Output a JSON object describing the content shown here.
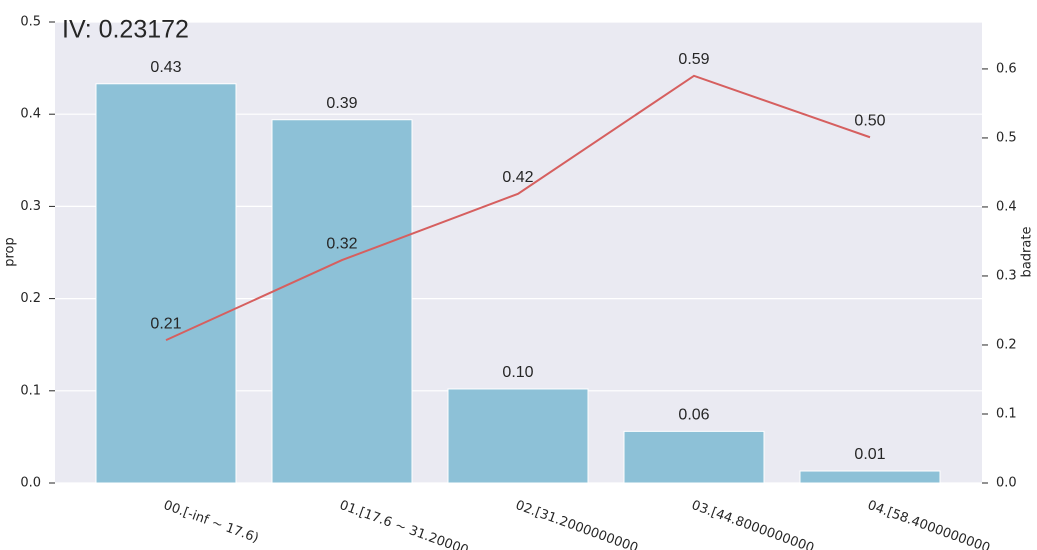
{
  "chart_data": {
    "type": "bar-line",
    "title": "IV: 0.23172",
    "ylabel": "prop",
    "y2label": "badrate",
    "categories": [
      "00.[-inf ~ 17.6)",
      "01.[17.6 ~ 31.20000",
      "02.[31.2000000000",
      "03.[44.8000000000",
      "04.[58.4000000000"
    ],
    "series": [
      {
        "name": "prop",
        "type": "bar",
        "color": "#8dc1d7",
        "values": [
          0.433,
          0.394,
          0.102,
          0.056,
          0.013
        ],
        "value_labels": [
          "0.43",
          "0.39",
          "0.10",
          "0.06",
          "0.01"
        ]
      },
      {
        "name": "badrate",
        "type": "line",
        "axis": "y2",
        "color": "#d65f5f",
        "values": [
          0.207,
          0.323,
          0.419,
          0.59,
          0.501
        ],
        "value_labels": [
          "0.21",
          "0.32",
          "0.42",
          "0.59",
          "0.50"
        ]
      }
    ],
    "ylim": [
      0,
      0.5
    ],
    "yticks": [
      {
        "value": 0,
        "label": "0.0"
      },
      0.1,
      0.2,
      0.3,
      0.4,
      0.5
    ],
    "y2lim": [
      0,
      0.668
    ],
    "y2ticks": [
      {
        "value": 0,
        "label": "0.0"
      },
      0.1,
      0.2,
      0.3,
      0.4,
      0.5,
      0.6
    ],
    "grid": true
  }
}
